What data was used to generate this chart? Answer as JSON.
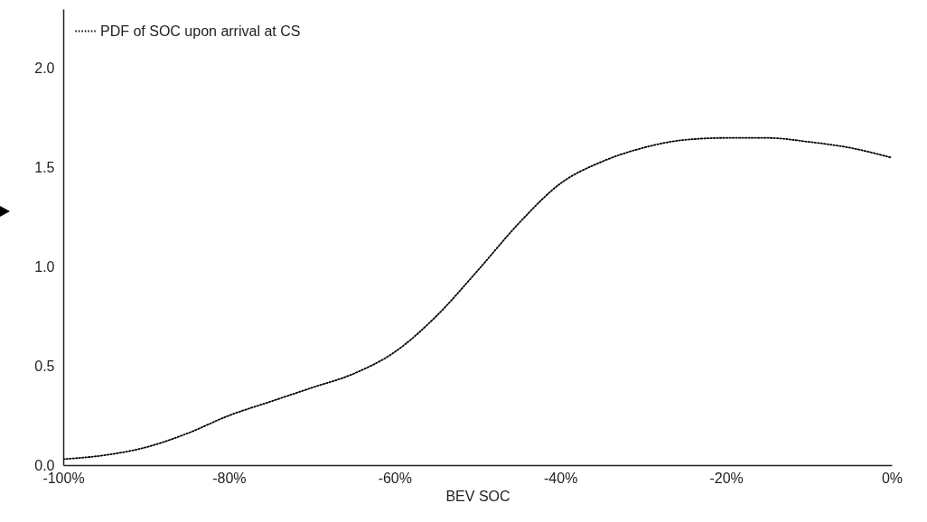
{
  "chart_data": {
    "type": "line",
    "xlabel": "BEV SOC",
    "legend": "top left",
    "line_style": "dotted",
    "grid": false,
    "xlim": [
      -100,
      0
    ],
    "ylim": [
      0,
      2.3
    ],
    "xticks": [
      {
        "value": -100,
        "label": "-100%"
      },
      {
        "value": -80,
        "label": "-80%"
      },
      {
        "value": -60,
        "label": "-60%"
      },
      {
        "value": -40,
        "label": "-40%"
      },
      {
        "value": -20,
        "label": "-20%"
      },
      {
        "value": 0,
        "label": "0%"
      }
    ],
    "yticks": [
      {
        "value": 0,
        "label": "0.0"
      },
      {
        "value": 0.5,
        "label": "0.5"
      },
      {
        "value": 1,
        "label": "1.0"
      },
      {
        "value": 1.5,
        "label": "1.5"
      },
      {
        "value": 2,
        "label": "2.0"
      }
    ],
    "x": [
      -100,
      -95,
      -90,
      -85,
      -80,
      -75,
      -70,
      -65,
      -60,
      -55,
      -50,
      -45,
      -40,
      -35,
      -30,
      -25,
      -20,
      -15,
      -10,
      -5,
      0
    ],
    "series": [
      {
        "name": "PDF of SOC upon arrival at CS",
        "color": "#000000",
        "values": [
          0.03,
          0.05,
          0.09,
          0.16,
          0.25,
          0.32,
          0.39,
          0.46,
          0.57,
          0.75,
          0.98,
          1.22,
          1.42,
          1.53,
          1.6,
          1.64,
          1.65,
          1.65,
          1.63,
          1.6,
          1.55
        ]
      }
    ]
  }
}
